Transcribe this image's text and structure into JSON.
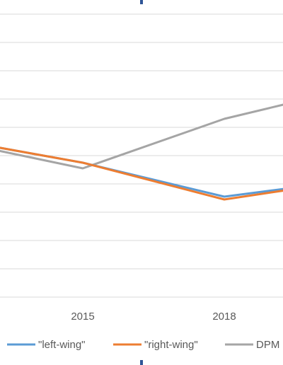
{
  "chart_data": {
    "type": "line",
    "x": [
      "",
      "2015",
      "2018",
      ""
    ],
    "series": [
      {
        "name": "\"left-wing\"",
        "color": "#5B9BD5",
        "values": [
          5.65,
          4.75,
          3.55,
          4.2
        ]
      },
      {
        "name": "\"right-wing\"",
        "color": "#ED7D31",
        "values": [
          5.65,
          4.75,
          3.45,
          4.2
        ]
      },
      {
        "name": "DPM",
        "color": "#A5A5A5",
        "values": [
          5.6,
          4.55,
          6.3,
          7.5
        ]
      }
    ],
    "ylim": [
      0,
      10.5
    ],
    "grid": true,
    "legend_position": "bottom"
  },
  "colors": {
    "gridline": "#d9d9d9",
    "tick_mark": "#2f5597"
  }
}
